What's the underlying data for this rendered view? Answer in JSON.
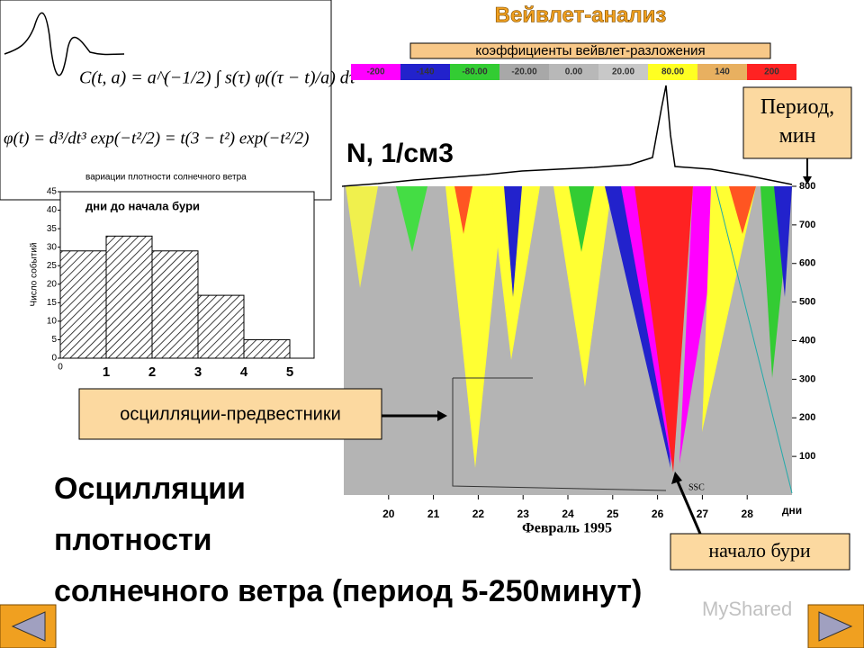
{
  "title": "Вейвлет-анализ",
  "subtitle": "коэффициенты вейвлет-разложения",
  "formulas": [
    "C(t, a) = a^(−1/2) ∫ s(τ) φ((τ − t)/a) dτ",
    "φ(t) = d³/dt³ exp(−t²/2) = t(3 − t²) exp(−t²/2)"
  ],
  "formula_caption": "вариации плотности солнечного ветра",
  "colorbar": {
    "labels": [
      "-200",
      "-140",
      "-80.00",
      "-20.00",
      "0.00",
      "20.00",
      "80.00",
      "140",
      "200"
    ],
    "colors": [
      "#ff00ff",
      "#2222cc",
      "#33cc33",
      "#a8a8a8",
      "#b8b8b8",
      "#c8c8c8",
      "#ffff22",
      "#e8b060",
      "#ff2222"
    ]
  },
  "wavelet": {
    "series_label": "N, 1/см3",
    "ylim": [
      0,
      800
    ],
    "yticks": [
      100,
      200,
      300,
      400,
      500,
      600,
      700,
      800
    ],
    "xlim": [
      19,
      29
    ],
    "xticks": [
      20,
      21,
      22,
      23,
      24,
      25,
      26,
      27,
      28
    ],
    "x_unit": "дни",
    "xlabel": "Февраль 1995",
    "marker": "SSC"
  },
  "callouts": {
    "period": "Период, мин",
    "precursors": "осцилляции-предвестники",
    "storm_start": "начало бури"
  },
  "body_lines": [
    "Осцилляции",
    "плотности",
    "солнечного ветра (период 5-250минут)"
  ],
  "watermark": "MyShared",
  "chart_data": {
    "type": "bar",
    "title": "дни до начала бури",
    "ylabel": "Число событий",
    "x_origin": "0",
    "categories": [
      "1",
      "2",
      "3",
      "4",
      "5"
    ],
    "values": [
      29,
      33,
      29,
      17,
      5
    ],
    "ylim": [
      0,
      45
    ],
    "yticks": [
      0,
      5,
      10,
      15,
      20,
      25,
      30,
      35,
      40,
      45
    ]
  }
}
